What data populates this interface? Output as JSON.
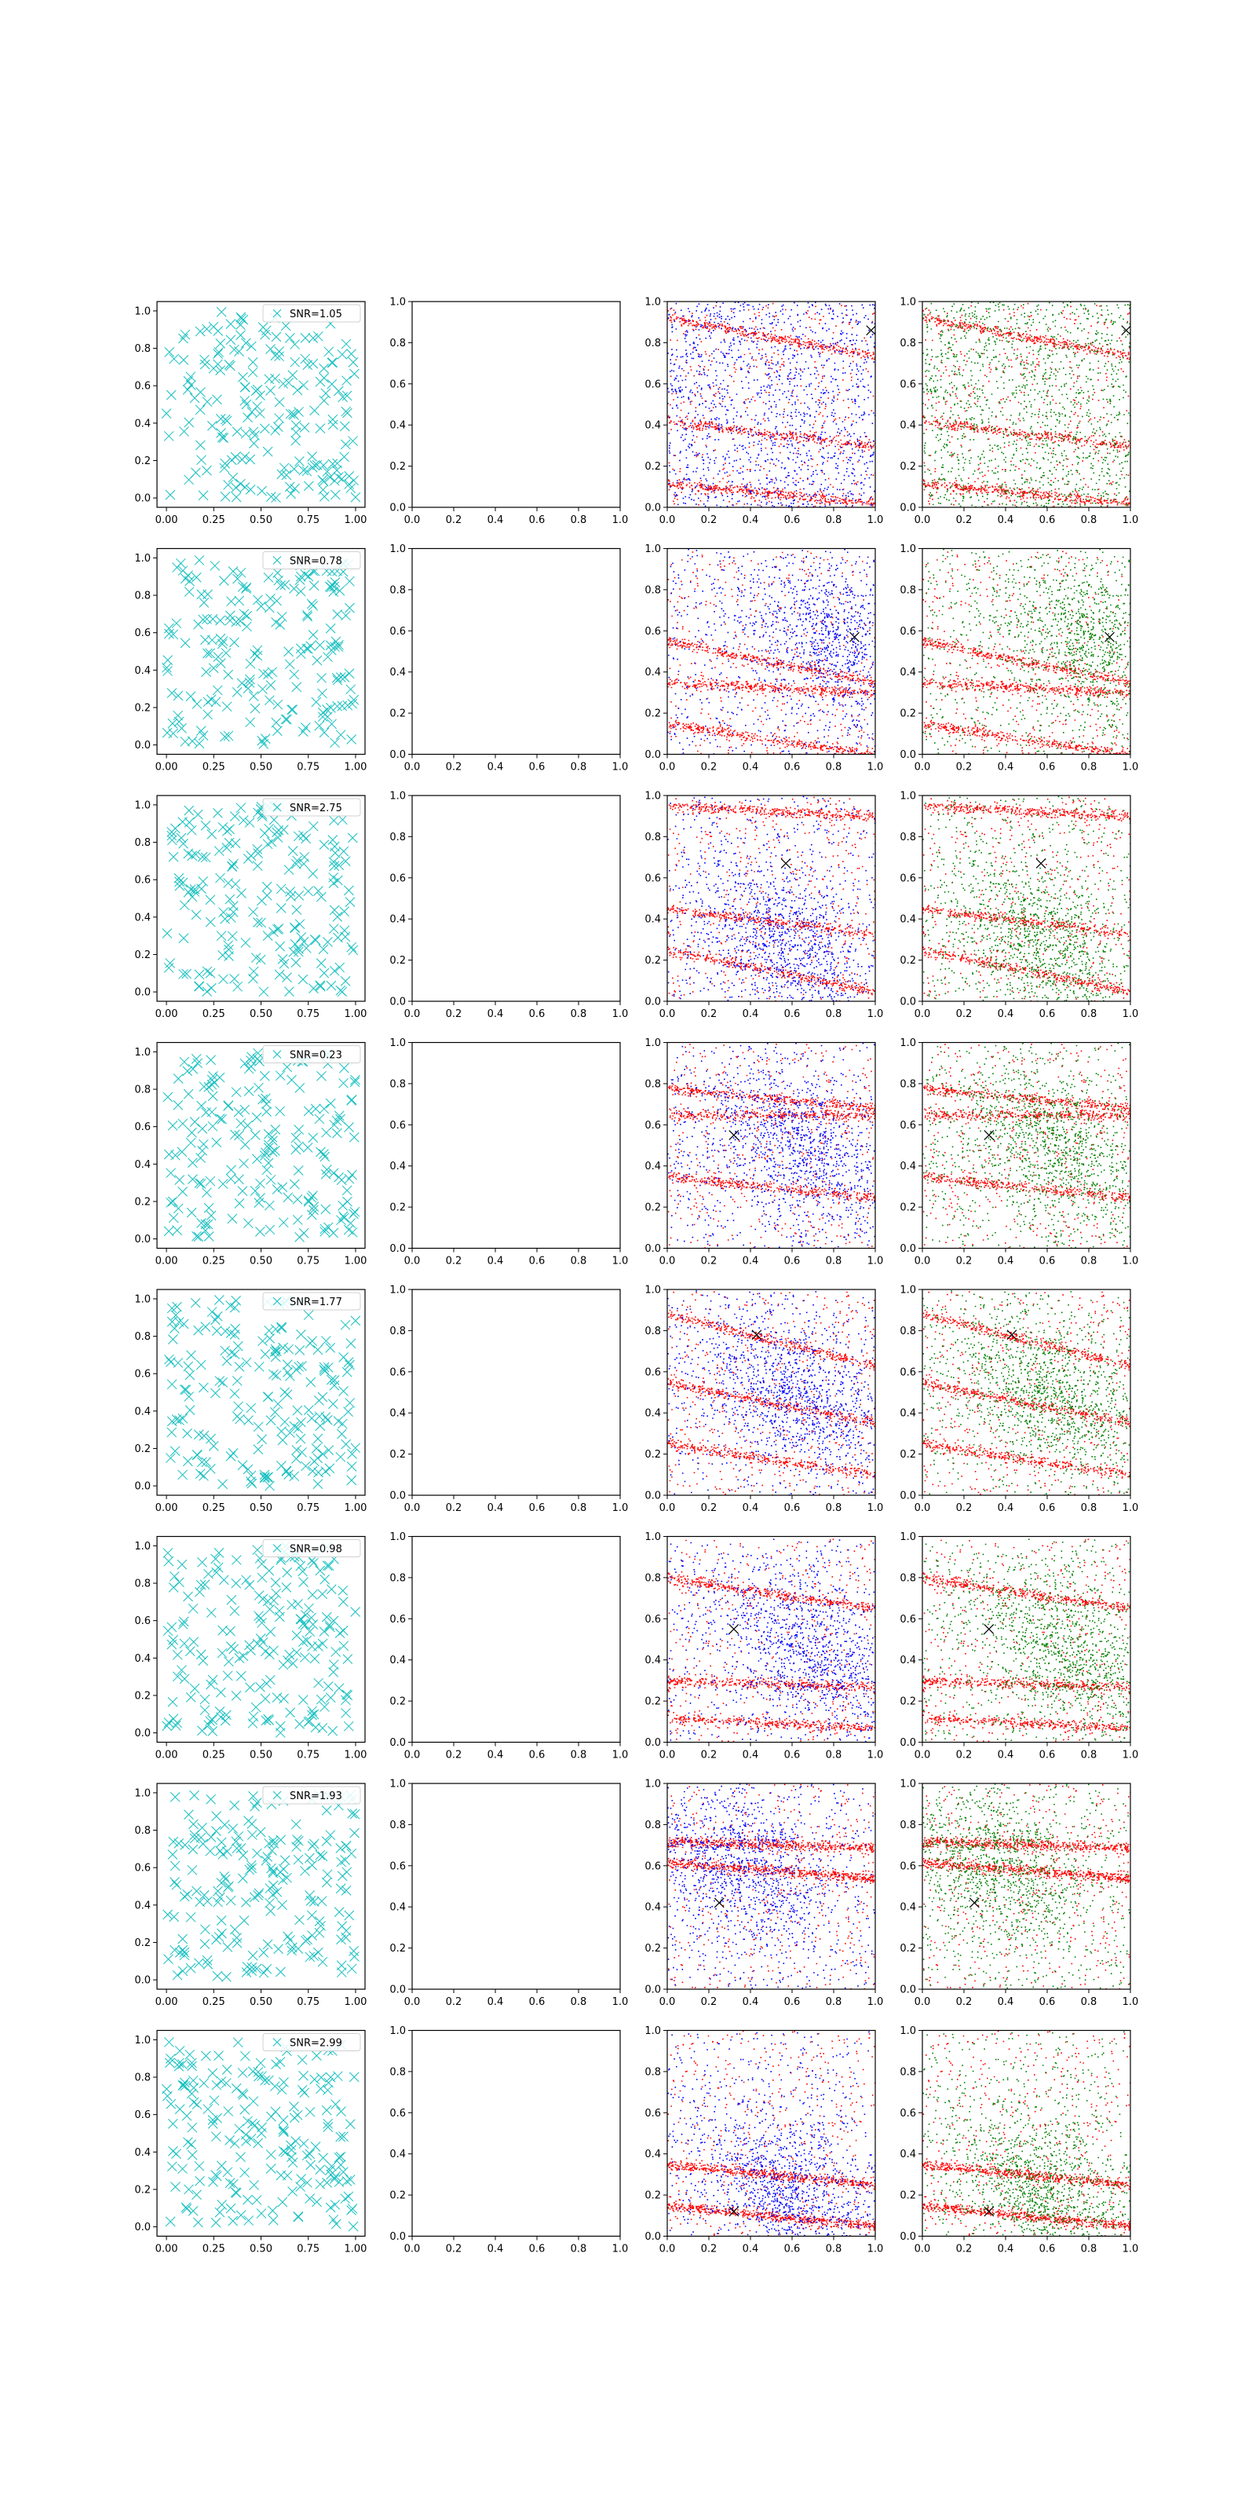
{
  "colors": {
    "cyan_marker": "#17bfbf",
    "blue_points": "#0000ff",
    "red_points": "#ff0000",
    "green_points": "#008000",
    "true_marker": "#000000"
  },
  "panel_ticks": {
    "col1_x": [
      "0.00",
      "0.25",
      "0.50",
      "0.75",
      "1.00"
    ],
    "col_other_x": [
      "0.0",
      "0.2",
      "0.4",
      "0.6",
      "0.8",
      "1.0"
    ],
    "y": [
      "0.0",
      "0.2",
      "0.4",
      "0.6",
      "0.8",
      "1.0"
    ]
  },
  "chart_data": [
    {
      "type": "scatter",
      "row": 1,
      "legend": "SNR=1.05",
      "true_point": [
        0.98,
        0.86
      ],
      "blue_cluster": {
        "center": [
          0.5,
          0.5
        ],
        "spread": "uniform"
      },
      "red_bands": [
        {
          "intercept": 0.92,
          "slope": -0.18
        },
        {
          "intercept": 0.42,
          "slope": -0.12
        },
        {
          "intercept": 0.12,
          "slope": -0.1
        }
      ],
      "xlim": [
        0,
        1
      ],
      "ylim": [
        0,
        1
      ]
    },
    {
      "type": "scatter",
      "row": 2,
      "legend": "SNR=0.78",
      "true_point": [
        0.9,
        0.57
      ],
      "blue_cluster": {
        "center": [
          0.8,
          0.55
        ],
        "spread": "wide"
      },
      "red_bands": [
        {
          "intercept": 0.35,
          "slope": -0.05
        },
        {
          "intercept": 0.55,
          "slope": -0.2
        },
        {
          "intercept": 0.15,
          "slope": -0.15
        }
      ],
      "xlim": [
        0,
        1
      ],
      "ylim": [
        0,
        1
      ]
    },
    {
      "type": "scatter",
      "row": 3,
      "legend": "SNR=2.75",
      "true_point": [
        0.57,
        0.67
      ],
      "blue_cluster": {
        "center": [
          0.55,
          0.3
        ],
        "spread": "wide"
      },
      "red_bands": [
        {
          "intercept": 0.95,
          "slope": -0.05
        },
        {
          "intercept": 0.45,
          "slope": -0.12
        },
        {
          "intercept": 0.25,
          "slope": -0.2
        }
      ],
      "xlim": [
        0,
        1
      ],
      "ylim": [
        0,
        1
      ]
    },
    {
      "type": "scatter",
      "row": 4,
      "legend": "SNR=0.23",
      "true_point": [
        0.32,
        0.55
      ],
      "blue_cluster": {
        "center": [
          0.6,
          0.5
        ],
        "spread": "wide"
      },
      "red_bands": [
        {
          "intercept": 0.78,
          "slope": -0.1
        },
        {
          "intercept": 0.65,
          "slope": 0.0
        },
        {
          "intercept": 0.35,
          "slope": -0.1
        }
      ],
      "xlim": [
        0,
        1
      ],
      "ylim": [
        0,
        1
      ]
    },
    {
      "type": "scatter",
      "row": 5,
      "legend": "SNR=1.77",
      "true_point": [
        0.43,
        0.78
      ],
      "blue_cluster": {
        "center": [
          0.6,
          0.5
        ],
        "spread": "wide"
      },
      "red_bands": [
        {
          "intercept": 0.88,
          "slope": -0.25
        },
        {
          "intercept": 0.55,
          "slope": -0.2
        },
        {
          "intercept": 0.25,
          "slope": -0.15
        }
      ],
      "xlim": [
        0,
        1
      ],
      "ylim": [
        0,
        1
      ]
    },
    {
      "type": "scatter",
      "row": 6,
      "legend": "SNR=0.98",
      "true_point": [
        0.32,
        0.55
      ],
      "blue_cluster": {
        "center": [
          0.68,
          0.45
        ],
        "spread": "wide"
      },
      "red_bands": [
        {
          "intercept": 0.8,
          "slope": -0.15
        },
        {
          "intercept": 0.3,
          "slope": -0.03
        },
        {
          "intercept": 0.12,
          "slope": -0.05
        }
      ],
      "xlim": [
        0,
        1
      ],
      "ylim": [
        0,
        1
      ]
    },
    {
      "type": "scatter",
      "row": 7,
      "legend": "SNR=1.93",
      "true_point": [
        0.25,
        0.42
      ],
      "blue_cluster": {
        "center": [
          0.35,
          0.6
        ],
        "spread": "wide"
      },
      "red_bands": [
        {
          "intercept": 0.72,
          "slope": -0.03
        },
        {
          "intercept": 0.62,
          "slope": -0.08
        }
      ],
      "xlim": [
        0,
        1
      ],
      "ylim": [
        0,
        1
      ]
    },
    {
      "type": "scatter",
      "row": 8,
      "legend": "SNR=2.99",
      "true_point": [
        0.32,
        0.12
      ],
      "blue_cluster": {
        "center": [
          0.55,
          0.25
        ],
        "spread": "wide"
      },
      "red_bands": [
        {
          "intercept": 0.15,
          "slope": -0.1
        },
        {
          "intercept": 0.35,
          "slope": -0.1
        }
      ],
      "xlim": [
        0,
        1
      ],
      "ylim": [
        0,
        1
      ]
    }
  ]
}
